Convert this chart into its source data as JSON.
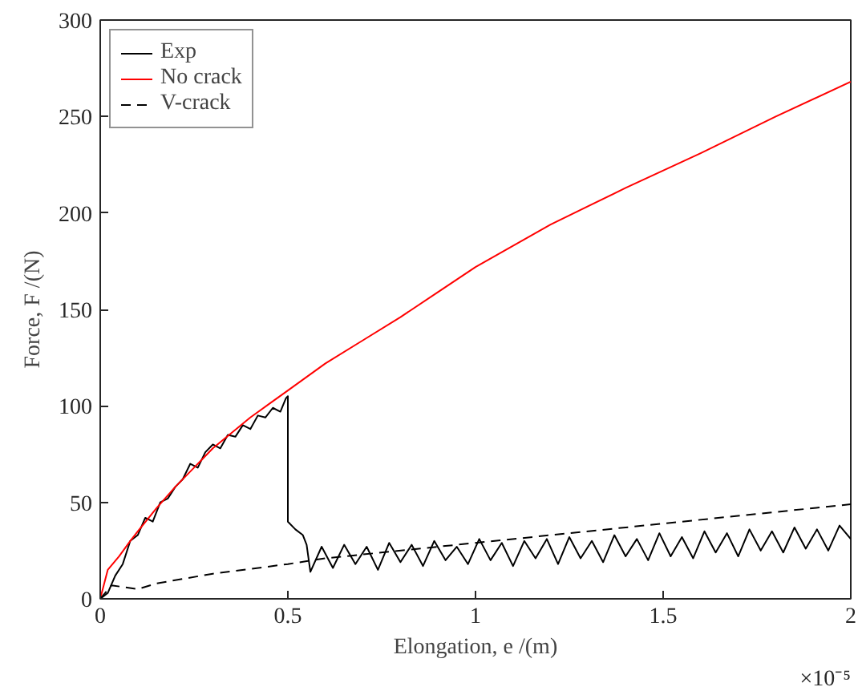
{
  "chart_data": {
    "type": "line",
    "xlabel": "Elongation, e /(m)",
    "ylabel": "Force, F /(N)",
    "xlim": [
      0,
      2
    ],
    "ylim": [
      0,
      300
    ],
    "xticks": [
      0,
      0.5,
      1,
      1.5,
      2
    ],
    "yticks": [
      0,
      50,
      100,
      150,
      200,
      250,
      300
    ],
    "annotations": [
      "×10⁻⁵"
    ],
    "legend": "top left",
    "grid": false,
    "series": [
      {
        "name": "Exp",
        "color": "#000000",
        "line_style": "solid",
        "x": [
          0,
          0.02,
          0.04,
          0.06,
          0.08,
          0.1,
          0.12,
          0.14,
          0.16,
          0.18,
          0.2,
          0.22,
          0.24,
          0.26,
          0.28,
          0.3,
          0.32,
          0.34,
          0.36,
          0.38,
          0.4,
          0.42,
          0.44,
          0.46,
          0.48,
          0.495,
          0.5,
          0.5,
          0.52,
          0.54,
          0.55,
          0.56,
          0.59,
          0.62,
          0.65,
          0.68,
          0.71,
          0.74,
          0.77,
          0.8,
          0.83,
          0.86,
          0.89,
          0.92,
          0.95,
          0.98,
          1.01,
          1.04,
          1.07,
          1.1,
          1.13,
          1.16,
          1.19,
          1.22,
          1.25,
          1.28,
          1.31,
          1.34,
          1.37,
          1.4,
          1.43,
          1.46,
          1.49,
          1.52,
          1.55,
          1.58,
          1.61,
          1.64,
          1.67,
          1.7,
          1.73,
          1.76,
          1.79,
          1.82,
          1.85,
          1.88,
          1.91,
          1.94,
          1.97,
          2
        ],
        "values": [
          0,
          3,
          12,
          18,
          30,
          33,
          42,
          40,
          50,
          52,
          58,
          62,
          70,
          68,
          76,
          80,
          78,
          85,
          84,
          90,
          88,
          95,
          94,
          99,
          97,
          104,
          105,
          40,
          36,
          33,
          28,
          14,
          27,
          16,
          28,
          18,
          27,
          15,
          29,
          19,
          28,
          17,
          30,
          20,
          27,
          18,
          31,
          20,
          29,
          17,
          30,
          21,
          31,
          18,
          32,
          21,
          30,
          19,
          33,
          22,
          31,
          20,
          34,
          22,
          32,
          21,
          35,
          24,
          34,
          22,
          36,
          25,
          35,
          24,
          37,
          26,
          36,
          25,
          38,
          31
        ]
      },
      {
        "name": "No crack",
        "color": "#ff0000",
        "line_style": "solid",
        "x": [
          0,
          0.02,
          0.05,
          0.08,
          0.1,
          0.15,
          0.2,
          0.25,
          0.3,
          0.35,
          0.4,
          0.45,
          0.5,
          0.6,
          0.7,
          0.8,
          0.9,
          1,
          1.2,
          1.4,
          1.6,
          1.8,
          2
        ],
        "values": [
          0,
          15,
          22,
          30,
          35,
          47,
          58,
          68,
          78,
          86,
          94,
          101,
          108,
          122,
          134,
          146,
          159,
          172,
          194,
          213,
          231,
          250,
          268
        ]
      },
      {
        "name": "V-crack",
        "color": "#000000",
        "line_style": "dashed",
        "x": [
          0,
          0.03,
          0.1,
          0.15,
          0.3,
          0.5,
          0.6,
          1,
          1.5,
          2
        ],
        "values": [
          0,
          7,
          5,
          8,
          13,
          18,
          21,
          29,
          39,
          49
        ]
      }
    ]
  }
}
